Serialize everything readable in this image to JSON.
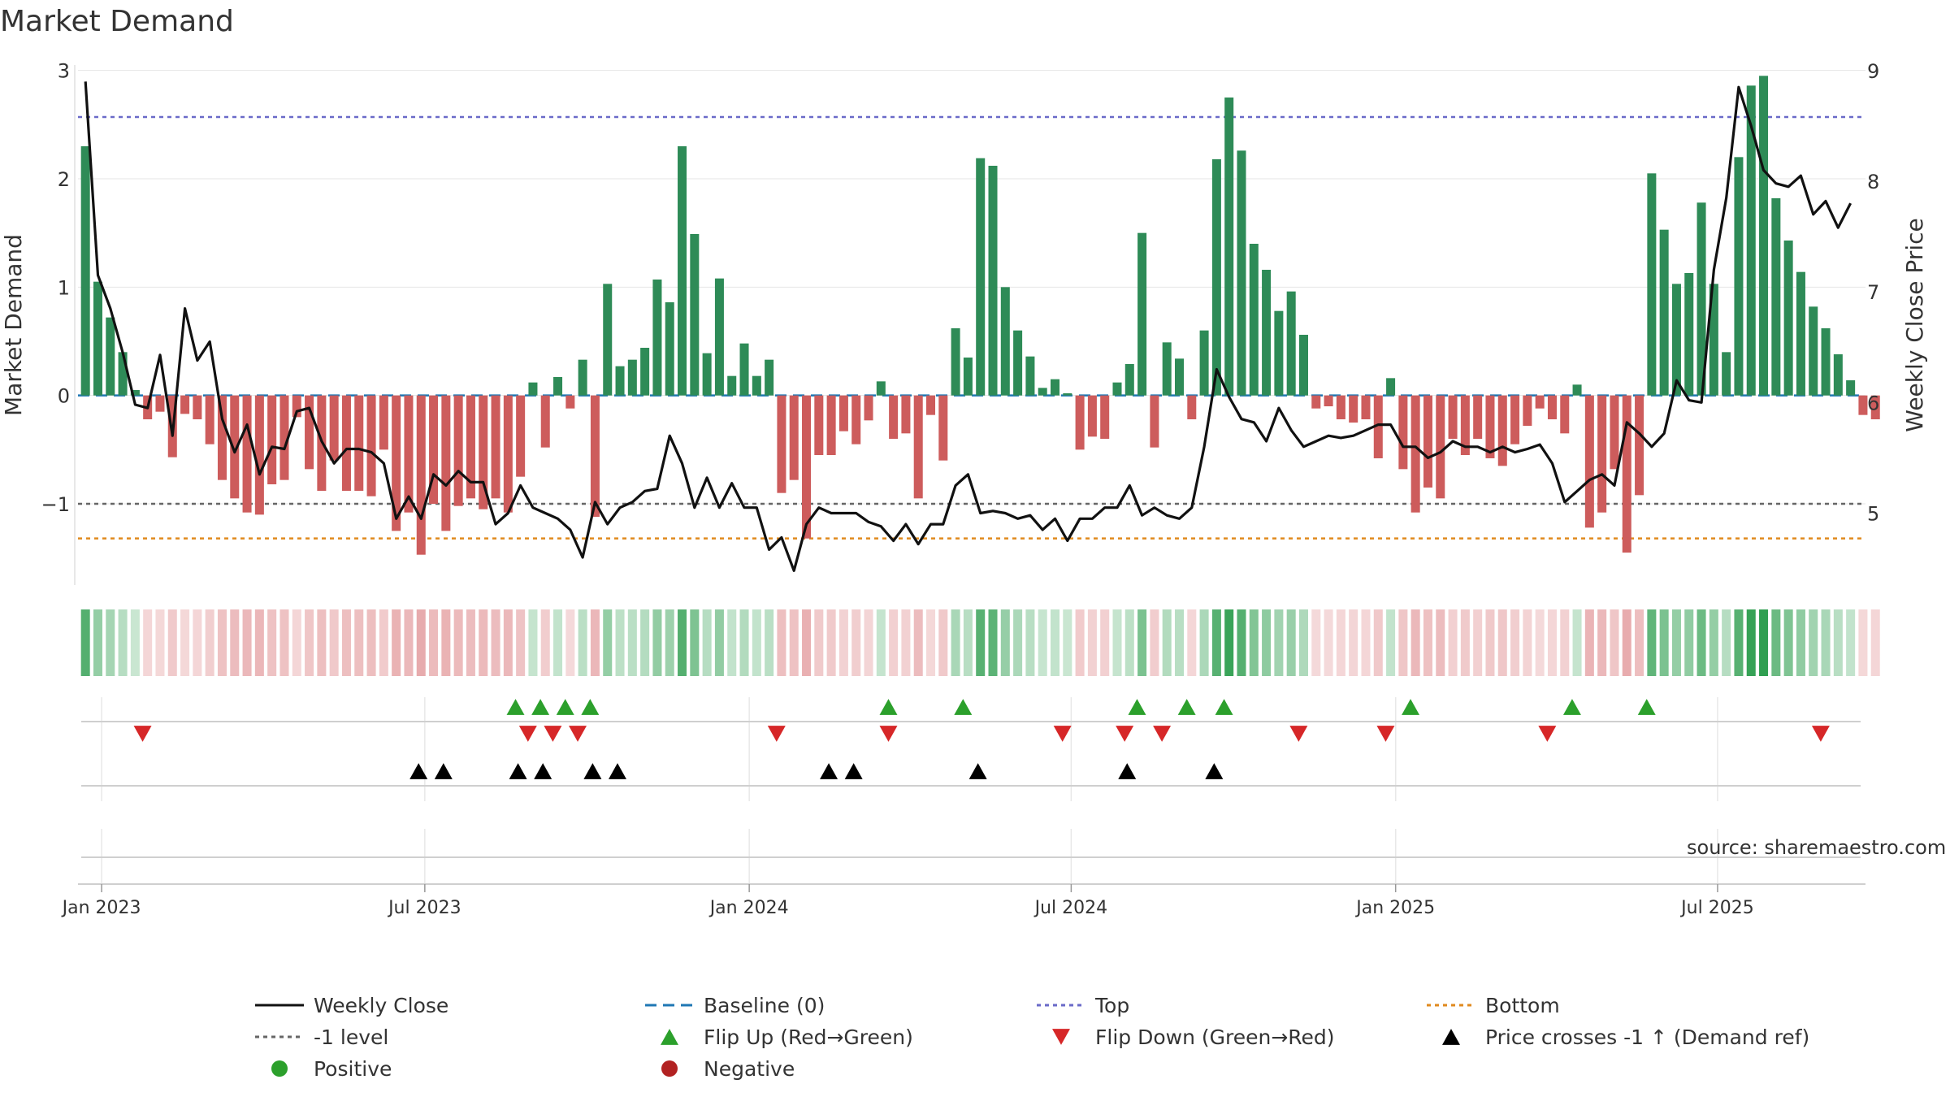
{
  "title": "Market Demand",
  "source_note": "source: sharemaestro.com",
  "colors": {
    "positive": "#2e8b57",
    "negative": "#cd5c5c",
    "close_line": "#111111",
    "baseline": "#1f77b4",
    "top": "#6a6ac8",
    "bottom": "#e08a1e",
    "level": "#666666",
    "flip_up": "#2ca02c",
    "flip_down": "#d62728",
    "cross": "#000000",
    "heat_pos": "#2e9e4f",
    "heat_neg": "#d9777a"
  },
  "chart_data": {
    "type": "bar+line",
    "start_date": "2022-12-23",
    "period_days": 7,
    "ylabel_left": "Market Demand",
    "ylabel_right": "Weekly Close Price",
    "ylim_left": [
      -1.75,
      3.05
    ],
    "ylim_right": [
      4.35,
      9.05
    ],
    "yticks_left": [
      3,
      2,
      1,
      0,
      -1
    ],
    "ytick_labels_left": [
      "3",
      "2",
      "1",
      "0",
      "−1"
    ],
    "yticks_right": [
      9,
      8,
      7,
      6,
      5
    ],
    "ytick_labels_right": [
      "9",
      "8",
      "7",
      "6",
      "5"
    ],
    "xticks": [
      "Jan 2023",
      "Jul 2023",
      "Jan 2024",
      "Jul 2024",
      "Jan 2025",
      "Jul 2025"
    ],
    "xtick_weeks": [
      1.3,
      27.3,
      53.4,
      79.3,
      105.4,
      131.3
    ],
    "x_range_weeks": [
      -0.6,
      143.2
    ],
    "levels": {
      "top": 2.57,
      "bottom": -1.32,
      "minus_one": -1.0,
      "baseline": 0
    },
    "demand": [
      2.3,
      1.05,
      0.72,
      0.4,
      0.05,
      -0.22,
      -0.15,
      -0.57,
      -0.17,
      -0.22,
      -0.45,
      -0.78,
      -0.95,
      -1.08,
      -1.1,
      -0.82,
      -0.78,
      -0.2,
      -0.68,
      -0.88,
      -0.6,
      -0.88,
      -0.88,
      -0.93,
      -0.5,
      -1.25,
      -1.08,
      -1.47,
      -1.0,
      -1.25,
      -1.02,
      -0.95,
      -1.05,
      -0.95,
      -1.08,
      -0.75,
      0.12,
      -0.48,
      0.17,
      -0.12,
      0.33,
      -1.12,
      1.03,
      0.27,
      0.33,
      0.44,
      1.07,
      0.86,
      2.3,
      1.49,
      0.39,
      1.08,
      0.18,
      0.48,
      0.18,
      0.33,
      -0.9,
      -0.78,
      -1.32,
      -0.55,
      -0.55,
      -0.33,
      -0.45,
      -0.23,
      0.13,
      -0.4,
      -0.35,
      -0.95,
      -0.18,
      -0.6,
      0.62,
      0.35,
      2.19,
      2.12,
      1.0,
      0.6,
      0.36,
      0.07,
      0.15,
      0.02,
      -0.5,
      -0.38,
      -0.4,
      0.12,
      0.29,
      1.5,
      -0.48,
      0.49,
      0.34,
      -0.22,
      0.6,
      2.18,
      2.75,
      2.26,
      1.4,
      1.16,
      0.78,
      0.96,
      0.56,
      -0.12,
      -0.1,
      -0.22,
      -0.25,
      -0.22,
      -0.58,
      0.16,
      -0.68,
      -1.08,
      -0.85,
      -0.95,
      -0.4,
      -0.55,
      -0.4,
      -0.58,
      -0.65,
      -0.45,
      -0.28,
      -0.12,
      -0.22,
      -0.35,
      0.1,
      -1.22,
      -1.08,
      -0.68,
      -1.45,
      -0.92,
      2.05,
      1.53,
      1.03,
      1.13,
      1.78,
      1.03,
      0.4,
      2.2,
      2.86,
      2.95,
      1.82,
      1.43,
      1.14,
      0.82,
      0.62,
      0.38,
      0.14,
      -0.18,
      -0.22
    ],
    "close": [
      8.9,
      7.15,
      6.85,
      6.45,
      5.98,
      5.95,
      6.43,
      5.7,
      6.85,
      6.38,
      6.55,
      5.85,
      5.55,
      5.8,
      5.35,
      5.6,
      5.58,
      5.92,
      5.95,
      5.65,
      5.45,
      5.58,
      5.58,
      5.55,
      5.45,
      4.95,
      5.15,
      4.95,
      5.35,
      5.25,
      5.38,
      5.28,
      5.28,
      4.9,
      5.0,
      5.25,
      5.05,
      5.0,
      4.95,
      4.85,
      4.6,
      5.1,
      4.9,
      5.05,
      5.1,
      5.2,
      5.22,
      5.7,
      5.45,
      5.05,
      5.32,
      5.05,
      5.27,
      5.05,
      5.05,
      4.67,
      4.78,
      4.48,
      4.9,
      5.05,
      5.0,
      5.0,
      5.0,
      4.92,
      4.88,
      4.75,
      4.9,
      4.72,
      4.9,
      4.9,
      5.25,
      5.35,
      5.0,
      5.02,
      5.0,
      4.95,
      4.98,
      4.85,
      4.95,
      4.75,
      4.95,
      4.95,
      5.05,
      5.05,
      5.25,
      4.98,
      5.05,
      4.98,
      4.95,
      5.05,
      5.6,
      6.3,
      6.05,
      5.85,
      5.82,
      5.65,
      5.95,
      5.75,
      5.6,
      5.65,
      5.7,
      5.68,
      5.7,
      5.75,
      5.8,
      5.8,
      5.6,
      5.6,
      5.5,
      5.55,
      5.65,
      5.6,
      5.6,
      5.55,
      5.6,
      5.55,
      5.58,
      5.62,
      5.45,
      5.1,
      5.2,
      5.3,
      5.35,
      5.25,
      5.82,
      5.72,
      5.6,
      5.72,
      6.2,
      6.02,
      6.0,
      7.2,
      7.85,
      8.85,
      8.5,
      8.1,
      7.98,
      7.95,
      8.05,
      7.7,
      7.82,
      7.58,
      7.8
    ],
    "flip_up_weeks": [
      34.6,
      36.6,
      38.6,
      40.6,
      64.6,
      70.6,
      84.6,
      88.6,
      91.6,
      106.6,
      119.6,
      125.6
    ],
    "flip_down_weeks": [
      4.6,
      35.6,
      37.6,
      39.6,
      55.6,
      64.6,
      78.6,
      83.6,
      86.6,
      97.6,
      104.6,
      117.6,
      139.6
    ],
    "price_cross_weeks": [
      26.8,
      28.8,
      34.8,
      36.8,
      40.8,
      42.8,
      59.8,
      61.8,
      71.8,
      83.8,
      90.8
    ],
    "legend": [
      {
        "label": "Weekly Close",
        "kind": "line-solid",
        "color": "#111111"
      },
      {
        "label": "Baseline (0)",
        "kind": "line-dash",
        "color": "#1f77b4"
      },
      {
        "label": "Top",
        "kind": "line-dot",
        "color": "#6a6ac8"
      },
      {
        "label": "Bottom",
        "kind": "line-dot",
        "color": "#e08a1e"
      },
      {
        "label": "-1 level",
        "kind": "line-dot",
        "color": "#666666"
      },
      {
        "label": "Flip Up (Red→Green)",
        "kind": "tri-up",
        "color": "#2ca02c"
      },
      {
        "label": "Flip Down (Green→Red)",
        "kind": "tri-down",
        "color": "#d62728"
      },
      {
        "label": "Price crosses -1 ↑ (Demand ref)",
        "kind": "tri-up",
        "color": "#000000"
      },
      {
        "label": "Positive",
        "kind": "dot",
        "color": "#2ca02c"
      },
      {
        "label": "Negative",
        "kind": "dot",
        "color": "#b22222"
      }
    ]
  }
}
